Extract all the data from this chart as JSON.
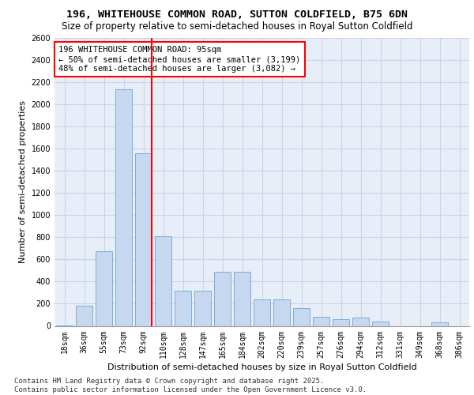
{
  "title_line1": "196, WHITEHOUSE COMMON ROAD, SUTTON COLDFIELD, B75 6DN",
  "title_line2": "Size of property relative to semi-detached houses in Royal Sutton Coldfield",
  "xlabel": "Distribution of semi-detached houses by size in Royal Sutton Coldfield",
  "ylabel": "Number of semi-detached properties",
  "categories": [
    "18sqm",
    "36sqm",
    "55sqm",
    "73sqm",
    "92sqm",
    "110sqm",
    "128sqm",
    "147sqm",
    "165sqm",
    "184sqm",
    "202sqm",
    "220sqm",
    "239sqm",
    "257sqm",
    "276sqm",
    "294sqm",
    "312sqm",
    "331sqm",
    "349sqm",
    "368sqm",
    "386sqm"
  ],
  "values": [
    5,
    180,
    670,
    2130,
    1560,
    810,
    315,
    315,
    490,
    490,
    240,
    240,
    160,
    85,
    60,
    75,
    40,
    0,
    0,
    30,
    0
  ],
  "bar_color": "#c5d8ef",
  "bar_edge_color": "#7bafd4",
  "vline_color": "red",
  "annotation_text": "196 WHITEHOUSE COMMON ROAD: 95sqm\n← 50% of semi-detached houses are smaller (3,199)\n48% of semi-detached houses are larger (3,082) →",
  "annotation_box_color": "white",
  "annotation_box_edge": "red",
  "ylim": [
    0,
    2600
  ],
  "yticks": [
    0,
    200,
    400,
    600,
    800,
    1000,
    1200,
    1400,
    1600,
    1800,
    2000,
    2200,
    2400,
    2600
  ],
  "grid_color": "#c8d4e8",
  "background_color": "#e8eef8",
  "footer_text": "Contains HM Land Registry data © Crown copyright and database right 2025.\nContains public sector information licensed under the Open Government Licence v3.0.",
  "title_fontsize": 9.5,
  "subtitle_fontsize": 8.5,
  "annotation_fontsize": 7.5,
  "footer_fontsize": 6.5,
  "ylabel_fontsize": 8,
  "xlabel_fontsize": 8,
  "tick_fontsize": 7
}
